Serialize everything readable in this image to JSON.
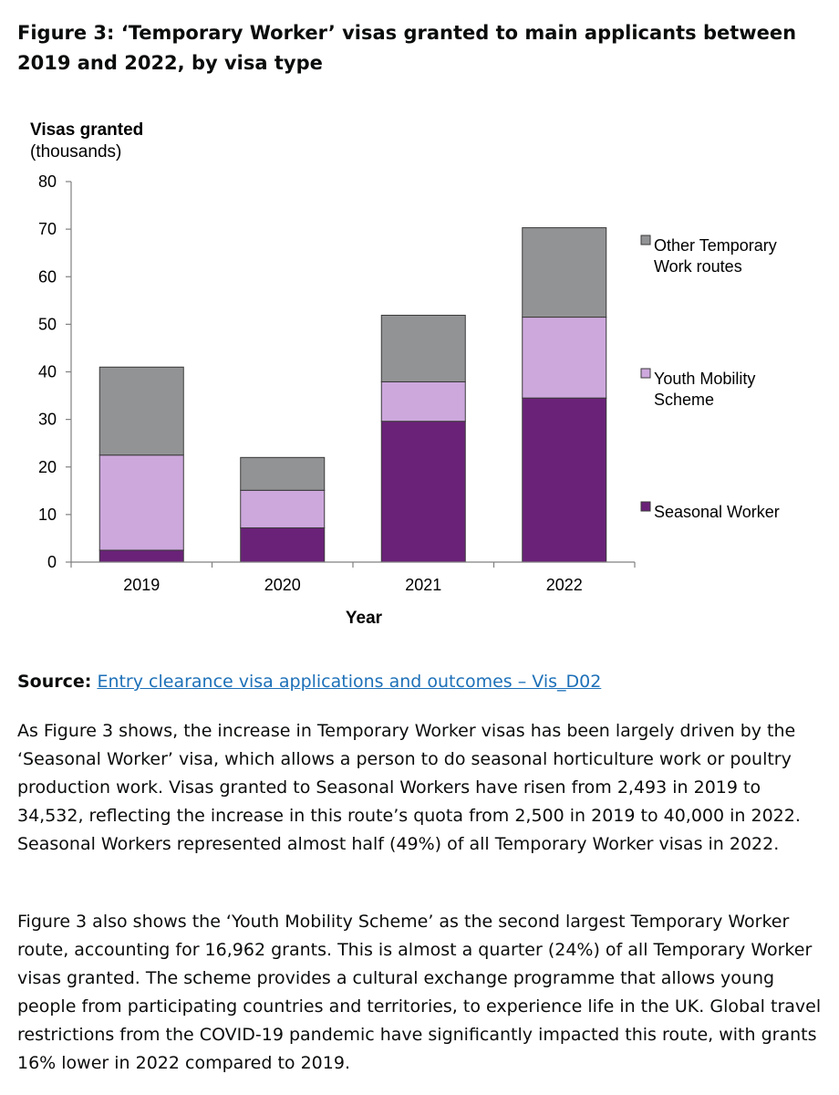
{
  "figure_title": "Figure 3: ‘Temporary Worker’ visas granted to main applicants between 2019 and 2022, by visa type",
  "source": {
    "label": "Source:",
    "link_text": "Entry clearance visa applications and outcomes – Vis_D02"
  },
  "paragraphs": [
    "As Figure 3 shows, the increase in Temporary Worker visas has been largely driven by the ‘Seasonal Worker’ visa, which allows a person to do seasonal horticulture work or poultry production work. Visas granted to Seasonal Workers have risen from 2,493 in 2019 to 34,532, reflecting the increase in this route’s quota from 2,500 in 2019 to 40,000 in 2022. Seasonal Workers represented almost half (49%) of all Temporary Worker visas in 2022.",
    "Figure 3 also shows the ‘Youth Mobility Scheme’ as the second largest Temporary Worker route, accounting for 16,962 grants. This is almost a quarter (24%) of all Temporary Worker visas granted. The scheme provides a cultural exchange programme that allows young people from participating countries and territories, to experience life in the UK. Global travel restrictions from the COVID-19 pandemic have significantly impacted this route, with grants 16% lower in 2022 compared to 2019."
  ],
  "chart_data": {
    "type": "bar",
    "stacked": true,
    "title": "",
    "ylabel": "Visas granted",
    "ylabel_units": "(thousands)",
    "xlabel": "Year",
    "categories": [
      "2019",
      "2020",
      "2021",
      "2022"
    ],
    "ylim": [
      0,
      80
    ],
    "yticks": [
      0,
      10,
      20,
      30,
      40,
      50,
      60,
      70,
      80
    ],
    "grid": false,
    "legend_position": "right",
    "series": [
      {
        "name": "Seasonal Worker",
        "color": "#6a2278",
        "values": [
          2.5,
          7.2,
          29.6,
          34.5
        ]
      },
      {
        "name": "Youth Mobility Scheme",
        "color": "#cda8dd",
        "values": [
          20.0,
          7.9,
          8.3,
          17.0
        ]
      },
      {
        "name": "Other Temporary Work routes",
        "color": "#929395",
        "values": [
          18.5,
          6.9,
          14.0,
          18.8
        ]
      }
    ]
  }
}
